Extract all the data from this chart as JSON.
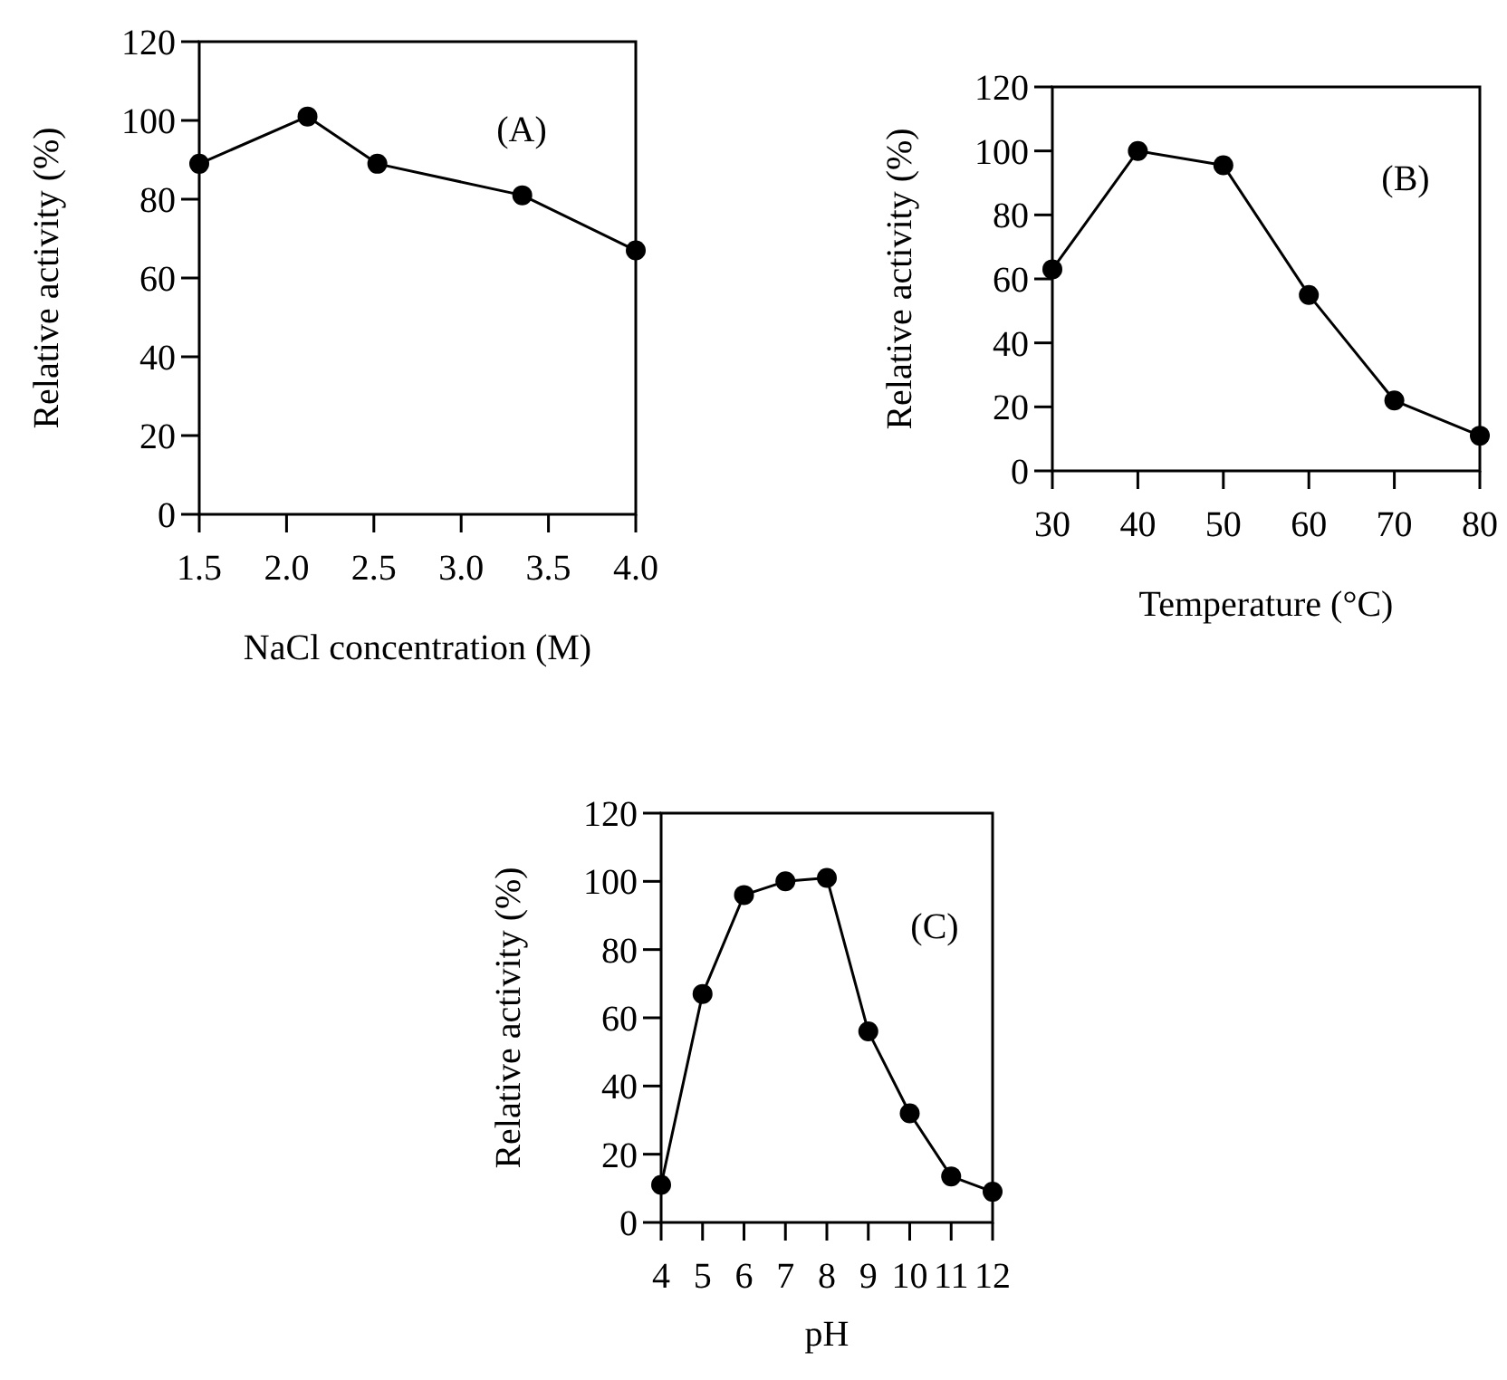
{
  "chart_data": [
    {
      "type": "line",
      "title": "(A)",
      "xlabel": "NaCl concentration (M)",
      "ylabel": "Relative activity (%)",
      "x": [
        1.5,
        2.12,
        2.52,
        3.35,
        4.0
      ],
      "values": [
        89,
        101,
        89,
        81,
        67
      ],
      "color": "#000000",
      "xlim": [
        1.5,
        4.0
      ],
      "xticks": [
        {
          "value": 1.5,
          "label": "1.5"
        },
        {
          "value": 2,
          "label": "2.0"
        },
        {
          "value": 2.5,
          "label": "2.5"
        },
        {
          "value": 3,
          "label": "3.0"
        },
        {
          "value": 3.5,
          "label": "3.5"
        },
        {
          "value": 4,
          "label": "4.0"
        }
      ],
      "ylim": [
        0,
        120
      ],
      "yticks": [
        0,
        20,
        40,
        60,
        80,
        100,
        120
      ],
      "grid": false,
      "marker": "circle",
      "line_style": "solid"
    },
    {
      "type": "line",
      "title": "(B)",
      "xlabel": "Temperature (°C)",
      "ylabel": "Relative activity (%)",
      "x": [
        30,
        40,
        50,
        60,
        70,
        80
      ],
      "values": [
        63,
        100,
        95.5,
        55,
        22,
        11
      ],
      "color": "#000000",
      "xlim": [
        30,
        80
      ],
      "xticks": [
        30,
        40,
        50,
        60,
        70,
        80
      ],
      "ylim": [
        0,
        120
      ],
      "yticks": [
        0,
        20,
        40,
        60,
        80,
        100,
        120
      ],
      "grid": false,
      "marker": "circle",
      "line_style": "solid"
    },
    {
      "type": "line",
      "title": "(C)",
      "xlabel": "pH",
      "ylabel": "Relative activity (%)",
      "x": [
        4,
        5,
        6,
        7,
        8,
        9,
        10,
        11,
        12
      ],
      "values": [
        11,
        67,
        96,
        100,
        101,
        56,
        32,
        13.5,
        9
      ],
      "color": "#000000",
      "xlim": [
        4,
        12
      ],
      "xticks": [
        4,
        5,
        6,
        7,
        8,
        9,
        10,
        11,
        12
      ],
      "ylim": [
        0,
        120
      ],
      "yticks": [
        0,
        20,
        40,
        60,
        80,
        100,
        120
      ],
      "grid": false,
      "marker": "circle",
      "line_style": "solid"
    }
  ]
}
